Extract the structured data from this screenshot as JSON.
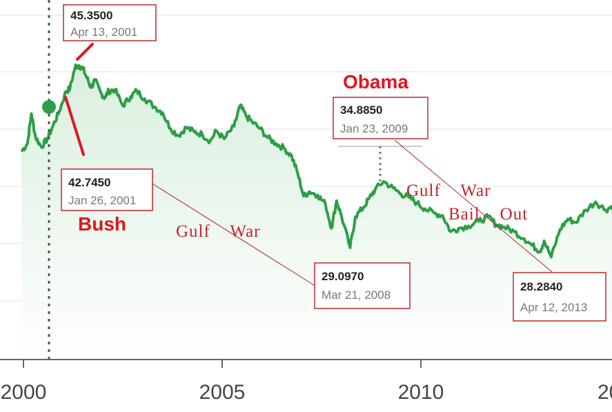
{
  "chart_data": {
    "type": "area",
    "x_ticks": [
      "2000",
      "2005",
      "2010",
      "20"
    ],
    "xlim": [
      1999.95,
      2015.3
    ],
    "ylim": [
      23,
      48
    ],
    "grid": true,
    "colors": {
      "line": "#2e9e46",
      "fill_top": "#d9efde",
      "fill_bottom": "#ffffff",
      "annotation": "#c0262c",
      "president": "#e0161e"
    },
    "series": [
      {
        "points": [
          [
            1999.95,
            37.5
          ],
          [
            2000.1,
            38.2
          ],
          [
            2000.2,
            40.8
          ],
          [
            2000.3,
            38.8
          ],
          [
            2000.45,
            37.9
          ],
          [
            2000.6,
            38.6
          ],
          [
            2000.75,
            39.8
          ],
          [
            2000.9,
            41.0
          ],
          [
            2001.07,
            42.745
          ],
          [
            2001.17,
            43.0
          ],
          [
            2001.3,
            44.9
          ],
          [
            2001.4,
            45.0
          ],
          [
            2001.5,
            44.7
          ],
          [
            2001.6,
            43.9
          ],
          [
            2001.7,
            43.1
          ],
          [
            2001.8,
            43.7
          ],
          [
            2001.95,
            42.6
          ],
          [
            2002.05,
            42.2
          ],
          [
            2002.15,
            42.8
          ],
          [
            2002.3,
            42.9
          ],
          [
            2002.5,
            41.5
          ],
          [
            2002.7,
            42.3
          ],
          [
            2002.85,
            42.8
          ],
          [
            2003.05,
            42.1
          ],
          [
            2003.3,
            41.4
          ],
          [
            2003.5,
            40.9
          ],
          [
            2003.7,
            39.5
          ],
          [
            2003.9,
            38.9
          ],
          [
            2004.1,
            39.6
          ],
          [
            2004.3,
            39.2
          ],
          [
            2004.5,
            39.0
          ],
          [
            2004.7,
            38.4
          ],
          [
            2004.85,
            39.3
          ],
          [
            2005.05,
            38.6
          ],
          [
            2005.3,
            39.7
          ],
          [
            2005.45,
            41.5
          ],
          [
            2005.6,
            40.6
          ],
          [
            2005.75,
            40.1
          ],
          [
            2005.95,
            39.5
          ],
          [
            2006.15,
            38.7
          ],
          [
            2006.35,
            38.2
          ],
          [
            2006.55,
            37.8
          ],
          [
            2006.75,
            37.1
          ],
          [
            2006.9,
            35.6
          ],
          [
            2007.05,
            33.6
          ],
          [
            2007.2,
            34.0
          ],
          [
            2007.4,
            33.7
          ],
          [
            2007.6,
            32.9
          ],
          [
            2007.75,
            30.8
          ],
          [
            2007.88,
            33.2
          ],
          [
            2008.0,
            31.9
          ],
          [
            2008.22,
            29.097
          ],
          [
            2008.35,
            31.8
          ],
          [
            2008.55,
            32.6
          ],
          [
            2008.7,
            33.4
          ],
          [
            2008.85,
            34.2
          ],
          [
            2009.06,
            34.885
          ],
          [
            2009.3,
            34.3
          ],
          [
            2009.5,
            33.8
          ],
          [
            2009.7,
            33.5
          ],
          [
            2009.9,
            33.0
          ],
          [
            2010.1,
            32.5
          ],
          [
            2010.35,
            32.1
          ],
          [
            2010.55,
            31.9
          ],
          [
            2010.75,
            30.5
          ],
          [
            2010.95,
            30.8
          ],
          [
            2011.2,
            31.0
          ],
          [
            2011.45,
            31.4
          ],
          [
            2011.7,
            31.8
          ],
          [
            2011.9,
            31.1
          ],
          [
            2012.1,
            30.9
          ],
          [
            2012.35,
            30.5
          ],
          [
            2012.6,
            29.9
          ],
          [
            2012.8,
            29.3
          ],
          [
            2013.0,
            28.8
          ],
          [
            2013.1,
            29.7
          ],
          [
            2013.28,
            28.284
          ],
          [
            2013.5,
            30.7
          ],
          [
            2013.7,
            31.6
          ],
          [
            2013.9,
            31.3
          ],
          [
            2014.15,
            32.4
          ],
          [
            2014.4,
            33.1
          ],
          [
            2014.65,
            32.4
          ],
          [
            2014.85,
            32.8
          ],
          [
            2015.05,
            32.0
          ],
          [
            2015.3,
            32.6
          ]
        ]
      }
    ],
    "annotations": [
      {
        "value": "45.3500",
        "date": "Apr 13, 2001"
      },
      {
        "value": "42.7450",
        "date": "Jan 26, 2001"
      },
      {
        "value": "34.8850",
        "date": "Jan 23, 2009"
      },
      {
        "value": "29.0970",
        "date": "Mar 21, 2008"
      },
      {
        "value": "28.2840",
        "date": "Apr 12, 2013"
      }
    ],
    "president_labels": [
      "Bush",
      "Obama"
    ],
    "event_labels": [
      "Gulf War",
      "Gulf War",
      "Bail Out"
    ]
  }
}
